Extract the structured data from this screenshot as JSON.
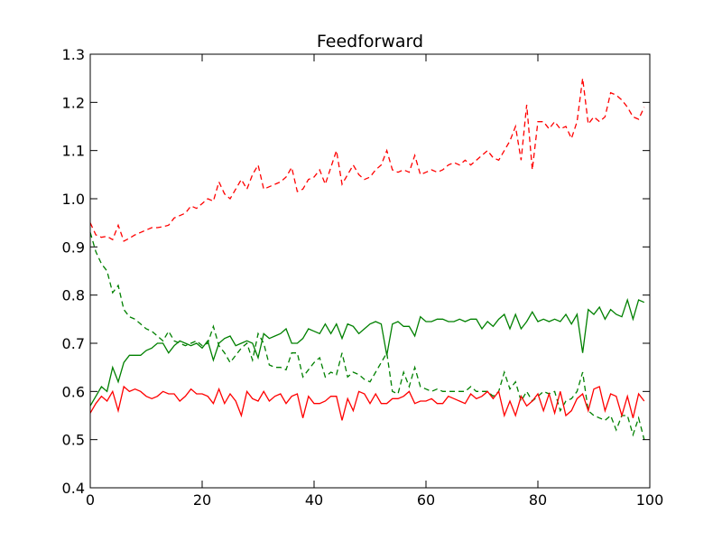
{
  "chart_data": {
    "type": "line",
    "title": "Feedforward",
    "xlabel": "",
    "ylabel": "",
    "xlim": [
      0,
      100
    ],
    "ylim": [
      0.4,
      1.3
    ],
    "xticks": [
      "0",
      "20",
      "40",
      "60",
      "80",
      "100"
    ],
    "yticks": [
      "0.4",
      "0.5",
      "0.6",
      "0.7",
      "0.8",
      "0.9",
      "1.0",
      "1.1",
      "1.2",
      "1.3"
    ],
    "grid": false,
    "x": [
      0,
      1,
      2,
      3,
      4,
      5,
      6,
      7,
      8,
      9,
      10,
      11,
      12,
      13,
      14,
      15,
      16,
      17,
      18,
      19,
      20,
      21,
      22,
      23,
      24,
      25,
      26,
      27,
      28,
      29,
      30,
      31,
      32,
      33,
      34,
      35,
      36,
      37,
      38,
      39,
      40,
      41,
      42,
      43,
      44,
      45,
      46,
      47,
      48,
      49,
      50,
      51,
      52,
      53,
      54,
      55,
      56,
      57,
      58,
      59,
      60,
      61,
      62,
      63,
      64,
      65,
      66,
      67,
      68,
      69,
      70,
      71,
      72,
      73,
      74,
      75,
      76,
      77,
      78,
      79,
      80,
      81,
      82,
      83,
      84,
      85,
      86,
      87,
      88,
      89,
      90,
      91,
      92,
      93,
      94,
      95,
      96,
      97,
      98,
      99
    ],
    "series": [
      {
        "color": "#ff0000",
        "linestyle": "dashed",
        "values": [
          0.95,
          0.925,
          0.92,
          0.922,
          0.915,
          0.945,
          0.912,
          0.918,
          0.925,
          0.93,
          0.935,
          0.94,
          0.94,
          0.942,
          0.945,
          0.96,
          0.965,
          0.97,
          0.985,
          0.98,
          0.99,
          1.0,
          0.995,
          1.035,
          1.01,
          1.0,
          1.02,
          1.04,
          1.02,
          1.05,
          1.07,
          1.02,
          1.025,
          1.03,
          1.035,
          1.045,
          1.065,
          1.015,
          1.02,
          1.04,
          1.045,
          1.06,
          1.03,
          1.065,
          1.1,
          1.03,
          1.05,
          1.07,
          1.05,
          1.04,
          1.045,
          1.06,
          1.07,
          1.1,
          1.06,
          1.055,
          1.06,
          1.055,
          1.09,
          1.05,
          1.055,
          1.06,
          1.055,
          1.06,
          1.07,
          1.075,
          1.07,
          1.08,
          1.07,
          1.08,
          1.09,
          1.1,
          1.085,
          1.08,
          1.1,
          1.12,
          1.15,
          1.08,
          1.195,
          1.06,
          1.16,
          1.16,
          1.145,
          1.16,
          1.145,
          1.15,
          1.125,
          1.16,
          1.25,
          1.155,
          1.17,
          1.16,
          1.17,
          1.22,
          1.215,
          1.205,
          1.19,
          1.17,
          1.165,
          1.19
        ]
      },
      {
        "color": "#008000",
        "linestyle": "dashed",
        "values": [
          0.93,
          0.89,
          0.865,
          0.85,
          0.805,
          0.82,
          0.77,
          0.755,
          0.75,
          0.74,
          0.73,
          0.725,
          0.715,
          0.705,
          0.725,
          0.705,
          0.7,
          0.695,
          0.7,
          0.705,
          0.695,
          0.7,
          0.735,
          0.695,
          0.68,
          0.66,
          0.675,
          0.69,
          0.7,
          0.665,
          0.72,
          0.7,
          0.655,
          0.65,
          0.65,
          0.645,
          0.68,
          0.68,
          0.63,
          0.645,
          0.66,
          0.67,
          0.63,
          0.64,
          0.635,
          0.68,
          0.63,
          0.64,
          0.635,
          0.625,
          0.62,
          0.64,
          0.66,
          0.68,
          0.6,
          0.595,
          0.64,
          0.61,
          0.65,
          0.61,
          0.605,
          0.6,
          0.605,
          0.6,
          0.6,
          0.6,
          0.6,
          0.6,
          0.61,
          0.6,
          0.6,
          0.6,
          0.59,
          0.6,
          0.64,
          0.605,
          0.62,
          0.58,
          0.6,
          0.58,
          0.59,
          0.6,
          0.595,
          0.6,
          0.56,
          0.58,
          0.585,
          0.6,
          0.64,
          0.56,
          0.55,
          0.545,
          0.54,
          0.55,
          0.52,
          0.55,
          0.55,
          0.51,
          0.545,
          0.5
        ]
      },
      {
        "color": "#008000",
        "linestyle": "solid",
        "values": [
          0.57,
          0.59,
          0.61,
          0.6,
          0.65,
          0.62,
          0.66,
          0.675,
          0.675,
          0.675,
          0.685,
          0.69,
          0.7,
          0.7,
          0.68,
          0.695,
          0.705,
          0.7,
          0.695,
          0.7,
          0.69,
          0.705,
          0.665,
          0.7,
          0.71,
          0.715,
          0.695,
          0.7,
          0.705,
          0.7,
          0.67,
          0.72,
          0.71,
          0.715,
          0.72,
          0.73,
          0.7,
          0.7,
          0.71,
          0.73,
          0.725,
          0.72,
          0.74,
          0.72,
          0.74,
          0.71,
          0.74,
          0.735,
          0.72,
          0.73,
          0.74,
          0.745,
          0.74,
          0.675,
          0.74,
          0.745,
          0.735,
          0.735,
          0.715,
          0.755,
          0.745,
          0.745,
          0.75,
          0.75,
          0.745,
          0.745,
          0.75,
          0.745,
          0.75,
          0.75,
          0.73,
          0.745,
          0.735,
          0.75,
          0.76,
          0.73,
          0.76,
          0.73,
          0.745,
          0.765,
          0.745,
          0.75,
          0.745,
          0.75,
          0.745,
          0.76,
          0.74,
          0.76,
          0.68,
          0.77,
          0.76,
          0.775,
          0.75,
          0.77,
          0.76,
          0.755,
          0.79,
          0.75,
          0.79,
          0.785
        ]
      },
      {
        "color": "#ff0000",
        "linestyle": "solid",
        "values": [
          0.555,
          0.575,
          0.59,
          0.58,
          0.6,
          0.56,
          0.61,
          0.6,
          0.605,
          0.6,
          0.59,
          0.585,
          0.59,
          0.6,
          0.595,
          0.595,
          0.58,
          0.59,
          0.605,
          0.595,
          0.595,
          0.59,
          0.575,
          0.605,
          0.575,
          0.595,
          0.58,
          0.55,
          0.6,
          0.585,
          0.58,
          0.6,
          0.58,
          0.59,
          0.595,
          0.575,
          0.59,
          0.595,
          0.545,
          0.59,
          0.575,
          0.575,
          0.58,
          0.59,
          0.59,
          0.54,
          0.585,
          0.56,
          0.6,
          0.595,
          0.575,
          0.595,
          0.575,
          0.575,
          0.585,
          0.585,
          0.59,
          0.6,
          0.575,
          0.58,
          0.58,
          0.585,
          0.575,
          0.575,
          0.59,
          0.585,
          0.58,
          0.575,
          0.595,
          0.585,
          0.59,
          0.6,
          0.585,
          0.6,
          0.55,
          0.58,
          0.55,
          0.59,
          0.57,
          0.58,
          0.595,
          0.56,
          0.595,
          0.555,
          0.6,
          0.55,
          0.56,
          0.585,
          0.595,
          0.56,
          0.605,
          0.61,
          0.56,
          0.595,
          0.59,
          0.55,
          0.59,
          0.545,
          0.595,
          0.58
        ]
      }
    ]
  }
}
